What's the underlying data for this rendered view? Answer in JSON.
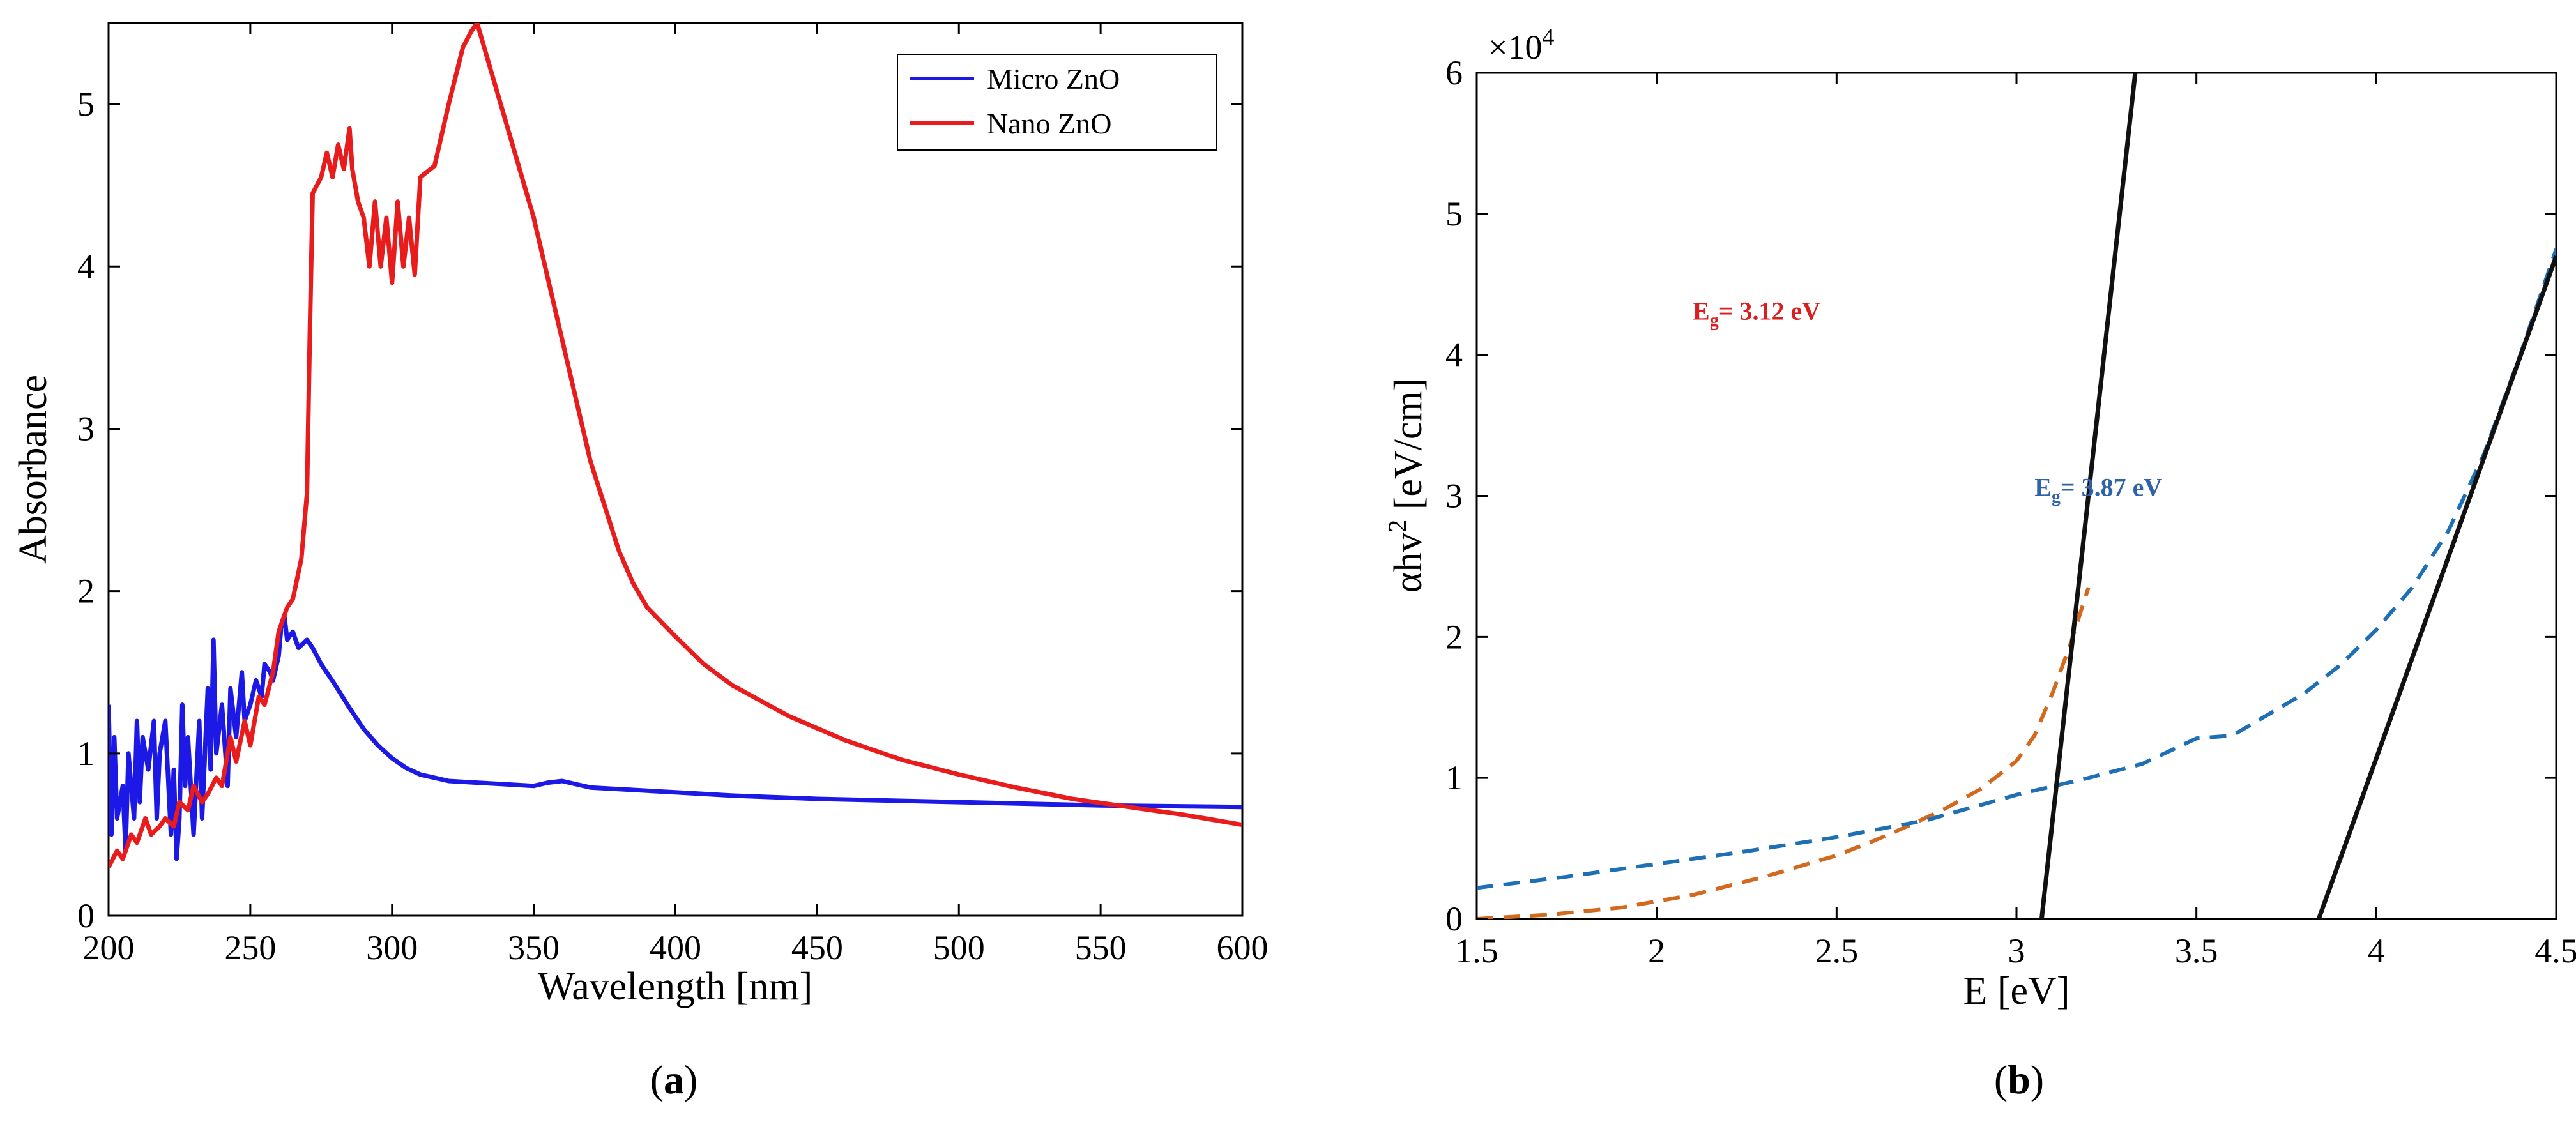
{
  "figure": {
    "panel_labels": [
      {
        "open": "(",
        "letter": "a",
        "close": ")"
      },
      {
        "open": "(",
        "letter": "b",
        "close": ")"
      }
    ]
  },
  "colors": {
    "micro": "#1c18e6",
    "nano": "#e81c1c",
    "eg1_dash": "#d2691e",
    "eg2_dash": "#1f6fb5",
    "fit": "#111111",
    "eg1_text": "#d81e1e",
    "eg2_text": "#2f62a8"
  },
  "chart_data": [
    {
      "type": "line",
      "title": "",
      "xlabel": "Wavelength [nm]",
      "ylabel": "Absorbance",
      "xlim": [
        200,
        600
      ],
      "ylim": [
        0,
        5.5
      ],
      "xticks": [
        200,
        250,
        300,
        350,
        400,
        450,
        500,
        550,
        600
      ],
      "yticks": [
        0,
        1,
        2,
        3,
        4,
        5
      ],
      "legend": {
        "position": "top-right",
        "entries": [
          "Micro ZnO",
          "Nano ZnO"
        ]
      },
      "series": [
        {
          "name": "Micro ZnO",
          "color": "micro",
          "x": [
            200,
            201,
            202,
            203,
            205,
            206,
            207,
            209,
            210,
            211,
            212,
            214,
            216,
            217,
            218,
            220,
            222,
            223,
            224,
            225,
            226,
            227,
            228,
            230,
            232,
            233,
            235,
            236,
            237,
            238,
            240,
            242,
            243,
            245,
            247,
            248,
            250,
            252,
            254,
            255,
            257,
            258,
            260,
            261,
            262,
            263,
            265,
            267,
            270,
            272,
            275,
            280,
            285,
            290,
            295,
            300,
            305,
            310,
            315,
            320,
            330,
            340,
            350,
            355,
            360,
            365,
            370,
            380,
            390,
            400,
            420,
            450,
            500,
            550,
            600
          ],
          "y": [
            1.3,
            0.5,
            1.1,
            0.6,
            0.8,
            0.4,
            1.0,
            0.6,
            1.2,
            0.7,
            1.1,
            0.9,
            1.2,
            0.6,
            1.0,
            1.2,
            0.5,
            0.9,
            0.35,
            0.6,
            1.3,
            0.8,
            1.1,
            0.5,
            1.2,
            0.6,
            1.4,
            0.9,
            1.7,
            1.0,
            1.3,
            0.8,
            1.4,
            1.1,
            1.5,
            1.2,
            1.3,
            1.45,
            1.35,
            1.55,
            1.5,
            1.45,
            1.6,
            1.8,
            1.85,
            1.7,
            1.75,
            1.65,
            1.7,
            1.65,
            1.55,
            1.42,
            1.28,
            1.15,
            1.05,
            0.97,
            0.91,
            0.87,
            0.85,
            0.83,
            0.82,
            0.81,
            0.8,
            0.82,
            0.83,
            0.81,
            0.79,
            0.78,
            0.77,
            0.76,
            0.74,
            0.72,
            0.7,
            0.68,
            0.67
          ]
        },
        {
          "name": "Nano ZnO",
          "color": "nano",
          "x": [
            200,
            203,
            205,
            208,
            210,
            213,
            215,
            218,
            220,
            223,
            225,
            228,
            230,
            233,
            235,
            238,
            240,
            243,
            245,
            248,
            250,
            253,
            255,
            258,
            260,
            263,
            265,
            268,
            270,
            271,
            272,
            275,
            277,
            279,
            281,
            283,
            285,
            286,
            288,
            290,
            292,
            294,
            296,
            298,
            300,
            302,
            304,
            306,
            308,
            310,
            315,
            320,
            325,
            328,
            330,
            335,
            340,
            350,
            360,
            370,
            380,
            385,
            390,
            400,
            410,
            420,
            440,
            460,
            480,
            500,
            520,
            540,
            560,
            580,
            600
          ],
          "y": [
            0.3,
            0.4,
            0.35,
            0.5,
            0.45,
            0.6,
            0.5,
            0.55,
            0.6,
            0.55,
            0.7,
            0.65,
            0.8,
            0.7,
            0.75,
            0.85,
            0.8,
            1.1,
            0.95,
            1.2,
            1.05,
            1.35,
            1.3,
            1.5,
            1.75,
            1.9,
            1.95,
            2.2,
            2.6,
            3.6,
            4.45,
            4.55,
            4.7,
            4.55,
            4.75,
            4.6,
            4.85,
            4.6,
            4.4,
            4.3,
            4.0,
            4.4,
            4.0,
            4.3,
            3.9,
            4.4,
            4.0,
            4.3,
            3.95,
            4.55,
            4.62,
            5.0,
            5.35,
            5.45,
            5.5,
            5.2,
            4.9,
            4.3,
            3.55,
            2.8,
            2.25,
            2.05,
            1.9,
            1.72,
            1.55,
            1.42,
            1.23,
            1.08,
            0.96,
            0.87,
            0.79,
            0.72,
            0.67,
            0.62,
            0.56
          ]
        }
      ]
    },
    {
      "type": "line",
      "title": "",
      "xlabel": "E [eV]",
      "ylabel_parts": {
        "base": "αhv",
        "sup": "2",
        "unit": "[eV/cm]"
      },
      "y_exponent": {
        "base": "×10",
        "exp": "4"
      },
      "xlim": [
        1.5,
        4.5
      ],
      "ylim": [
        0,
        6
      ],
      "xticks": [
        1.5,
        2,
        2.5,
        3,
        3.5,
        4,
        4.5
      ],
      "yticks": [
        0,
        1,
        2,
        3,
        4,
        5,
        6
      ],
      "series": [
        {
          "name": "Eg 3.12 eV curve",
          "style": "dashed",
          "color": "eg1_dash",
          "x": [
            1.5,
            1.7,
            1.9,
            2.1,
            2.3,
            2.5,
            2.6,
            2.7,
            2.8,
            2.9,
            3.0,
            3.05,
            3.1,
            3.15,
            3.2
          ],
          "y": [
            0.0,
            0.03,
            0.08,
            0.17,
            0.3,
            0.45,
            0.55,
            0.66,
            0.78,
            0.92,
            1.12,
            1.3,
            1.6,
            1.95,
            2.35
          ]
        },
        {
          "name": "Eg 3.87 eV curve",
          "style": "dashed",
          "color": "eg2_dash",
          "x": [
            1.5,
            1.75,
            2.0,
            2.25,
            2.5,
            2.75,
            3.0,
            3.2,
            3.35,
            3.45,
            3.5,
            3.6,
            3.7,
            3.8,
            3.9,
            4.0,
            4.1,
            4.2,
            4.3,
            4.4,
            4.5
          ],
          "y": [
            0.22,
            0.3,
            0.39,
            0.48,
            0.58,
            0.7,
            0.88,
            1.0,
            1.1,
            1.22,
            1.28,
            1.3,
            1.45,
            1.6,
            1.8,
            2.05,
            2.35,
            2.75,
            3.3,
            4.0,
            4.75
          ]
        },
        {
          "name": "Linear fit 1",
          "style": "solid",
          "color": "fit",
          "x": [
            3.07,
            3.33
          ],
          "y": [
            0,
            6
          ]
        },
        {
          "name": "Linear fit 2",
          "style": "solid",
          "color": "fit",
          "x": [
            3.84,
            4.5
          ],
          "y": [
            0,
            4.7
          ]
        }
      ],
      "annotations": [
        {
          "id": "eg1",
          "base": "E",
          "sub": "g",
          "text": "= 3.12 eV",
          "color": "eg1_text",
          "x": 2.1,
          "y": 4.25
        },
        {
          "id": "eg2",
          "base": "E",
          "sub": "g",
          "text": "= 3.87 eV",
          "color": "eg2_text",
          "x": 3.05,
          "y": 3.0
        }
      ]
    }
  ]
}
